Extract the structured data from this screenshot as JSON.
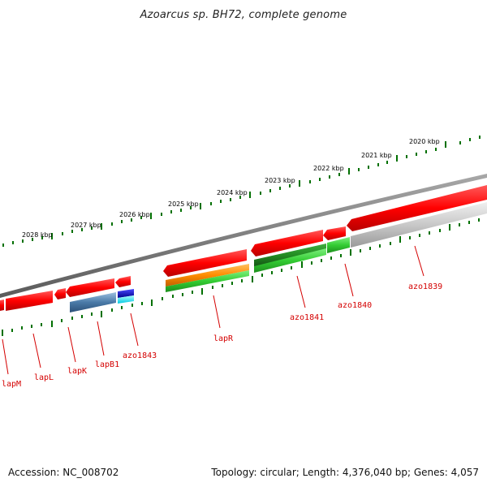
{
  "header": {
    "title": "Azoarcus sp. BH72, complete genome"
  },
  "footer": {
    "accession": "Accession: NC_008702",
    "summary": "Topology: circular; Length: 4,376,040 bp; Genes: 4,057"
  },
  "ruler_labels": [
    "2020 kbp",
    "2021 kbp",
    "2022 kbp",
    "2023 kbp",
    "2024 kbp",
    "2025 kbp",
    "2026 kbp",
    "2027 kbp",
    "2028 kbp"
  ],
  "gene_labels": [
    "azo1839",
    "azo1840",
    "azo1841",
    "lapR",
    "azo1843",
    "lapB1",
    "lapK",
    "lapL",
    "lapM"
  ],
  "colors": {
    "forward_cds": "#ff0000",
    "backbone": "#808080",
    "ruler_ticks": "#007000",
    "label": "#d40000",
    "gray_feature": "#c8c8c8",
    "green_feature": "#33cc33",
    "dark_green_feature": "#228b22",
    "orange_feature": "#ff8c00",
    "steelblue_feature": "#4a7aa8",
    "blue_feature": "#0000cc",
    "cyan_feature": "#00e5ff"
  }
}
